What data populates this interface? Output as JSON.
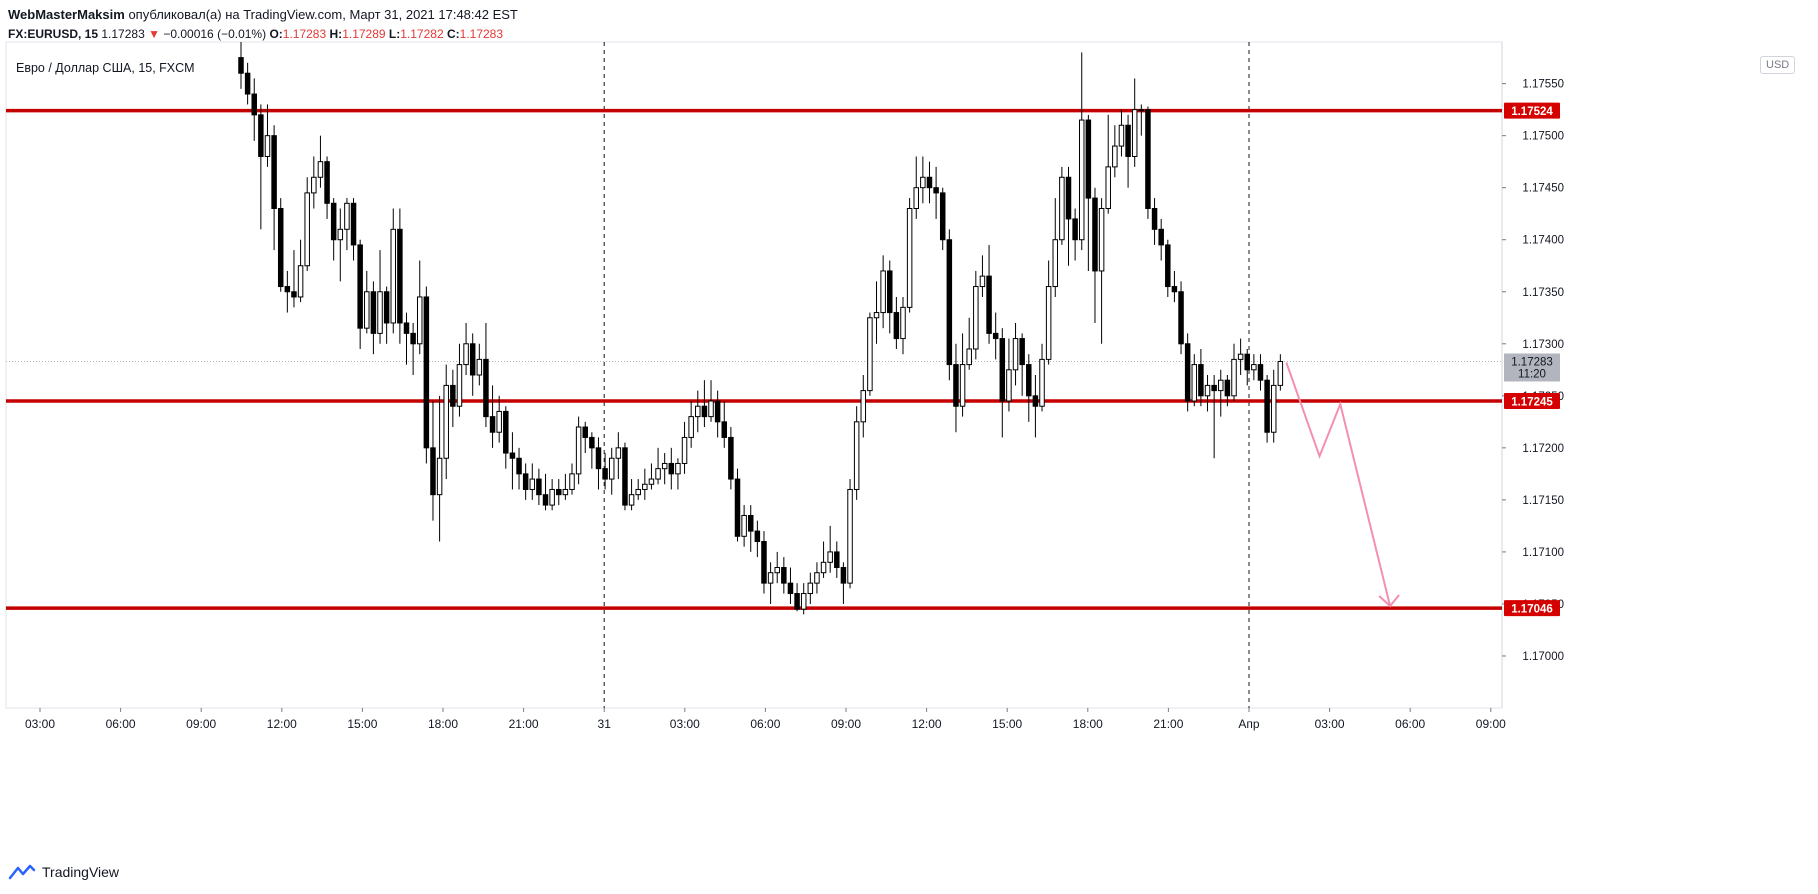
{
  "header": {
    "author": "WebMasterMaksim",
    "published_text": "опубликовал(а) на TradingView.com, Март 31, 2021 17:48:42 EST"
  },
  "ohlc": {
    "symbol": "FX:EURUSD, 15",
    "last": "1.17283",
    "change": "−0.00016 (−0.01%)",
    "o_label": "O:",
    "o": "1.17283",
    "h_label": "H:",
    "h": "1.17289",
    "l_label": "L:",
    "l": "1.17282",
    "c_label": "C:",
    "c": "1.17283",
    "down_color": "#e53935"
  },
  "footer": {
    "brand": "TradingView"
  },
  "chart_data": {
    "type": "candlestick",
    "legend": "Евро / Доллар США, 15, FXCM",
    "currency": "USD",
    "ylim": [
      1.1695,
      1.1759
    ],
    "y_ticks": [
      "1.17550",
      "1.17500",
      "1.17450",
      "1.17400",
      "1.17350",
      "1.17300",
      "1.17250",
      "1.17200",
      "1.17150",
      "1.17100",
      "1.17050",
      "1.17000"
    ],
    "x_ticks": [
      "03:00",
      "06:00",
      "09:00",
      "12:00",
      "15:00",
      "18:00",
      "21:00",
      "31",
      "03:00",
      "06:00",
      "09:00",
      "12:00",
      "15:00",
      "18:00",
      "21:00",
      "Апр",
      "03:00",
      "06:00",
      "09:00"
    ],
    "day_separators": [
      "31",
      "Апр"
    ],
    "horizontal_levels": [
      {
        "price": 1.17524,
        "label": "1.17524"
      },
      {
        "price": 1.17245,
        "label": "1.17245"
      },
      {
        "price": 1.17046,
        "label": "1.17046"
      }
    ],
    "current_price": {
      "price": 1.17283,
      "label": "1.17283",
      "countdown": "11:20"
    },
    "projection_path": [
      {
        "t": 0,
        "price": 1.17282
      },
      {
        "t": 4,
        "price": 1.17192
      },
      {
        "t": 6.5,
        "price": 1.17242
      },
      {
        "t": 12.5,
        "price": 1.17048
      }
    ],
    "candles": [
      [
        1.17575,
        1.1756,
        1.1759,
        1.17545
      ],
      [
        1.1756,
        1.1754,
        1.1757,
        1.1753
      ],
      [
        1.1754,
        1.1752,
        1.17555,
        1.17495
      ],
      [
        1.1752,
        1.1748,
        1.1753,
        1.1741
      ],
      [
        1.1748,
        1.175,
        1.1753,
        1.1747
      ],
      [
        1.175,
        1.1743,
        1.1751,
        1.1739
      ],
      [
        1.1743,
        1.17355,
        1.1744,
        1.1735
      ],
      [
        1.17355,
        1.1735,
        1.1737,
        1.1733
      ],
      [
        1.1735,
        1.17345,
        1.1739,
        1.17335
      ],
      [
        1.17345,
        1.17375,
        1.174,
        1.1734
      ],
      [
        1.17375,
        1.17445,
        1.1746,
        1.1737
      ],
      [
        1.17445,
        1.1746,
        1.1748,
        1.1743
      ],
      [
        1.1746,
        1.17475,
        1.175,
        1.1745
      ],
      [
        1.17475,
        1.17435,
        1.1748,
        1.1742
      ],
      [
        1.17435,
        1.174,
        1.1744,
        1.1738
      ],
      [
        1.174,
        1.1741,
        1.1743,
        1.1736
      ],
      [
        1.1741,
        1.17435,
        1.1744,
        1.1739
      ],
      [
        1.17435,
        1.17395,
        1.1744,
        1.1738
      ],
      [
        1.17395,
        1.17315,
        1.174,
        1.17295
      ],
      [
        1.17315,
        1.1735,
        1.1737,
        1.1731
      ],
      [
        1.1735,
        1.1731,
        1.1736,
        1.1729
      ],
      [
        1.1731,
        1.1735,
        1.1739,
        1.173
      ],
      [
        1.1735,
        1.1732,
        1.17355,
        1.173
      ],
      [
        1.1732,
        1.1741,
        1.1743,
        1.1731
      ],
      [
        1.1741,
        1.1732,
        1.1743,
        1.173
      ],
      [
        1.1732,
        1.1731,
        1.1733,
        1.1728
      ],
      [
        1.1731,
        1.173,
        1.1732,
        1.1727
      ],
      [
        1.173,
        1.17345,
        1.1738,
        1.1729
      ],
      [
        1.17345,
        1.172,
        1.17355,
        1.17185
      ],
      [
        1.172,
        1.17155,
        1.17245,
        1.1713
      ],
      [
        1.17155,
        1.1719,
        1.1725,
        1.1711
      ],
      [
        1.1719,
        1.1726,
        1.1728,
        1.1717
      ],
      [
        1.1726,
        1.1724,
        1.17275,
        1.1722
      ],
      [
        1.1724,
        1.1728,
        1.173,
        1.1723
      ],
      [
        1.1728,
        1.173,
        1.1732,
        1.1727
      ],
      [
        1.173,
        1.1727,
        1.1731,
        1.1725
      ],
      [
        1.1727,
        1.17285,
        1.173,
        1.1726
      ],
      [
        1.17285,
        1.1723,
        1.1732,
        1.1722
      ],
      [
        1.1723,
        1.17215,
        1.1726,
        1.172
      ],
      [
        1.17215,
        1.17235,
        1.1725,
        1.17205
      ],
      [
        1.17235,
        1.17195,
        1.1724,
        1.1718
      ],
      [
        1.17195,
        1.1719,
        1.17215,
        1.1716
      ],
      [
        1.1719,
        1.17175,
        1.172,
        1.1716
      ],
      [
        1.17175,
        1.1716,
        1.17185,
        1.1715
      ],
      [
        1.1716,
        1.1717,
        1.17185,
        1.1715
      ],
      [
        1.1717,
        1.17155,
        1.1718,
        1.17145
      ],
      [
        1.17155,
        1.17145,
        1.17175,
        1.1714
      ],
      [
        1.17145,
        1.1716,
        1.1717,
        1.1714
      ],
      [
        1.1716,
        1.17155,
        1.1717,
        1.17145
      ],
      [
        1.17155,
        1.1716,
        1.17175,
        1.1715
      ],
      [
        1.1716,
        1.17175,
        1.17185,
        1.17155
      ],
      [
        1.17175,
        1.1722,
        1.1723,
        1.17165
      ],
      [
        1.1722,
        1.1721,
        1.17225,
        1.17195
      ],
      [
        1.1721,
        1.172,
        1.17215,
        1.1718
      ],
      [
        1.172,
        1.1718,
        1.1721,
        1.1716
      ],
      [
        1.1718,
        1.1717,
        1.17195,
        1.1716
      ],
      [
        1.1717,
        1.1719,
        1.172,
        1.17155
      ],
      [
        1.1719,
        1.172,
        1.17215,
        1.1717
      ],
      [
        1.172,
        1.17145,
        1.17205,
        1.1714
      ],
      [
        1.17145,
        1.17155,
        1.1717,
        1.1714
      ],
      [
        1.17155,
        1.1716,
        1.1717,
        1.1715
      ],
      [
        1.1716,
        1.17165,
        1.1718,
        1.1715
      ],
      [
        1.17165,
        1.1717,
        1.17185,
        1.1716
      ],
      [
        1.1717,
        1.1718,
        1.172,
        1.17165
      ],
      [
        1.1718,
        1.17185,
        1.17195,
        1.17165
      ],
      [
        1.17185,
        1.17175,
        1.172,
        1.1716
      ],
      [
        1.17175,
        1.17185,
        1.1719,
        1.1716
      ],
      [
        1.17185,
        1.1721,
        1.17225,
        1.17175
      ],
      [
        1.1721,
        1.1723,
        1.17245,
        1.172
      ],
      [
        1.1723,
        1.1724,
        1.17255,
        1.17215
      ],
      [
        1.1724,
        1.1723,
        1.17265,
        1.1722
      ],
      [
        1.1723,
        1.17245,
        1.17265,
        1.17225
      ],
      [
        1.17245,
        1.17225,
        1.17255,
        1.1721
      ],
      [
        1.17225,
        1.1721,
        1.17245,
        1.172
      ],
      [
        1.1721,
        1.1717,
        1.1722,
        1.1716
      ],
      [
        1.1717,
        1.17115,
        1.1718,
        1.1711
      ],
      [
        1.17115,
        1.17135,
        1.17145,
        1.17105
      ],
      [
        1.17135,
        1.1712,
        1.17145,
        1.171
      ],
      [
        1.1712,
        1.1711,
        1.1713,
        1.17095
      ],
      [
        1.1711,
        1.1707,
        1.1712,
        1.1706
      ],
      [
        1.1707,
        1.1708,
        1.1709,
        1.1705
      ],
      [
        1.1708,
        1.17085,
        1.171,
        1.1707
      ],
      [
        1.17085,
        1.1707,
        1.17095,
        1.1706
      ],
      [
        1.1707,
        1.1706,
        1.17085,
        1.1705
      ],
      [
        1.1706,
        1.17045,
        1.1707,
        1.17043
      ],
      [
        1.17045,
        1.1706,
        1.1707,
        1.1704
      ],
      [
        1.1706,
        1.1707,
        1.1708,
        1.1705
      ],
      [
        1.1707,
        1.1708,
        1.1709,
        1.1706
      ],
      [
        1.1708,
        1.1709,
        1.1711,
        1.17075
      ],
      [
        1.1709,
        1.171,
        1.17125,
        1.1708
      ],
      [
        1.171,
        1.17085,
        1.1711,
        1.17075
      ],
      [
        1.17085,
        1.1707,
        1.1709,
        1.1705
      ],
      [
        1.1707,
        1.1716,
        1.1717,
        1.17065
      ],
      [
        1.1716,
        1.17225,
        1.1724,
        1.1715
      ],
      [
        1.17225,
        1.17255,
        1.1727,
        1.1721
      ],
      [
        1.17255,
        1.17325,
        1.1733,
        1.1725
      ],
      [
        1.17325,
        1.1733,
        1.1736,
        1.173
      ],
      [
        1.1733,
        1.1737,
        1.17385,
        1.17315
      ],
      [
        1.1737,
        1.1733,
        1.1738,
        1.1731
      ],
      [
        1.1733,
        1.17305,
        1.17345,
        1.17295
      ],
      [
        1.17305,
        1.17335,
        1.17345,
        1.1729
      ],
      [
        1.17335,
        1.1743,
        1.1744,
        1.1733
      ],
      [
        1.1743,
        1.1745,
        1.1748,
        1.1742
      ],
      [
        1.1745,
        1.1746,
        1.1748,
        1.17435
      ],
      [
        1.1746,
        1.1745,
        1.17475,
        1.17435
      ],
      [
        1.1745,
        1.17445,
        1.1747,
        1.1742
      ],
      [
        1.17445,
        1.174,
        1.1745,
        1.1739
      ],
      [
        1.174,
        1.1728,
        1.1741,
        1.17265
      ],
      [
        1.1728,
        1.1724,
        1.173,
        1.17215
      ],
      [
        1.1724,
        1.1728,
        1.1731,
        1.1723
      ],
      [
        1.1728,
        1.17295,
        1.17325,
        1.17275
      ],
      [
        1.17295,
        1.17355,
        1.1737,
        1.17285
      ],
      [
        1.17355,
        1.17365,
        1.17385,
        1.17345
      ],
      [
        1.17365,
        1.1731,
        1.17395,
        1.173
      ],
      [
        1.1731,
        1.17305,
        1.1733,
        1.17285
      ],
      [
        1.17305,
        1.17245,
        1.17315,
        1.1721
      ],
      [
        1.17245,
        1.17275,
        1.17305,
        1.17235
      ],
      [
        1.17275,
        1.17305,
        1.1732,
        1.1726
      ],
      [
        1.17305,
        1.1728,
        1.1731,
        1.1725
      ],
      [
        1.1728,
        1.1725,
        1.1729,
        1.17225
      ],
      [
        1.1725,
        1.1724,
        1.1727,
        1.1721
      ],
      [
        1.1724,
        1.17285,
        1.173,
        1.17235
      ],
      [
        1.17285,
        1.17355,
        1.1738,
        1.1728
      ],
      [
        1.17355,
        1.174,
        1.1744,
        1.17345
      ],
      [
        1.174,
        1.1746,
        1.1747,
        1.17395
      ],
      [
        1.1746,
        1.1742,
        1.1747,
        1.17375
      ],
      [
        1.1742,
        1.174,
        1.1743,
        1.1738
      ],
      [
        1.174,
        1.17515,
        1.1758,
        1.1739
      ],
      [
        1.17515,
        1.1744,
        1.1752,
        1.1737
      ],
      [
        1.1744,
        1.1737,
        1.1745,
        1.1732
      ],
      [
        1.1737,
        1.1743,
        1.1744,
        1.173
      ],
      [
        1.1743,
        1.1747,
        1.1752,
        1.17425
      ],
      [
        1.1747,
        1.1749,
        1.1751,
        1.1746
      ],
      [
        1.1749,
        1.1751,
        1.17525,
        1.1748
      ],
      [
        1.1751,
        1.1748,
        1.1752,
        1.1745
      ],
      [
        1.1748,
        1.17525,
        1.17555,
        1.1747
      ],
      [
        1.17525,
        1.17525,
        1.1753,
        1.175
      ],
      [
        1.17525,
        1.1743,
        1.17528,
        1.1742
      ],
      [
        1.1743,
        1.1741,
        1.1744,
        1.17395
      ],
      [
        1.1741,
        1.17395,
        1.1742,
        1.1738
      ],
      [
        1.17395,
        1.17355,
        1.174,
        1.17345
      ],
      [
        1.17355,
        1.1735,
        1.1737,
        1.1734
      ],
      [
        1.1735,
        1.173,
        1.1736,
        1.1729
      ],
      [
        1.173,
        1.17245,
        1.1731,
        1.17235
      ],
      [
        1.17245,
        1.1728,
        1.1729,
        1.1724
      ],
      [
        1.1728,
        1.1725,
        1.17295,
        1.1724
      ],
      [
        1.1725,
        1.1726,
        1.1727,
        1.17235
      ],
      [
        1.1726,
        1.17255,
        1.1727,
        1.1719
      ],
      [
        1.17255,
        1.17265,
        1.17275,
        1.1723
      ],
      [
        1.17265,
        1.1725,
        1.1727,
        1.1724
      ],
      [
        1.1725,
        1.17285,
        1.173,
        1.17245
      ],
      [
        1.17285,
        1.1729,
        1.17305,
        1.1727
      ],
      [
        1.1729,
        1.17275,
        1.17295,
        1.1726
      ],
      [
        1.17275,
        1.1728,
        1.1729,
        1.17265
      ],
      [
        1.1728,
        1.17265,
        1.1729,
        1.17255
      ],
      [
        1.17265,
        1.17215,
        1.1727,
        1.17205
      ],
      [
        1.17215,
        1.1726,
        1.17275,
        1.17205
      ],
      [
        1.1726,
        1.17283,
        1.1729,
        1.17255
      ]
    ]
  }
}
